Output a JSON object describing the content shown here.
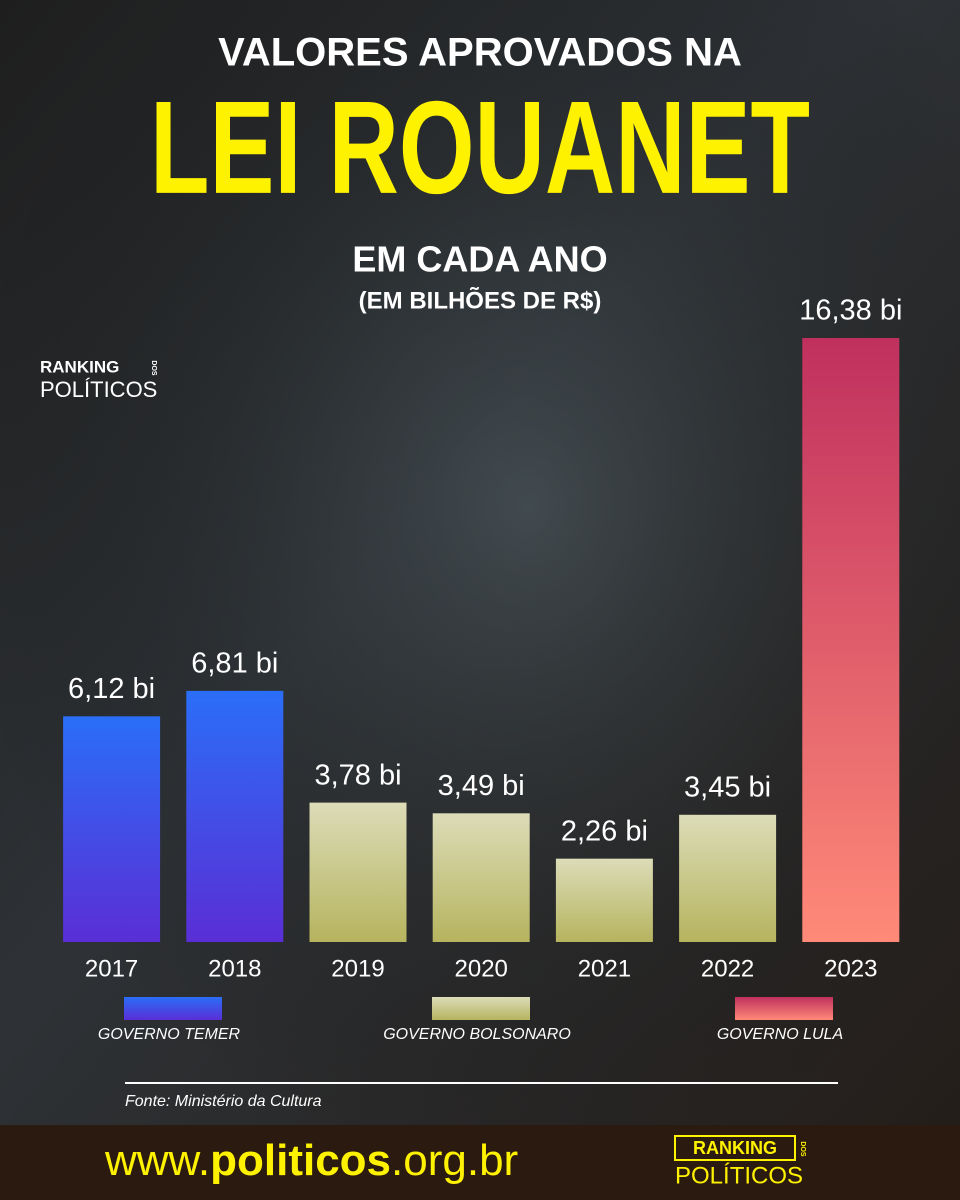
{
  "header": {
    "title_line1": "VALORES APROVADOS NA",
    "title_main": "LEI ROUANET",
    "subtitle": "EM CADA ANO",
    "unit_note": "(EM BILHÕES DE R$)"
  },
  "logo": {
    "ranking": "RANKING",
    "dos": "DOS",
    "politicos": "POLÍTICOS"
  },
  "chart_data": {
    "type": "bar",
    "categories": [
      "2017",
      "2018",
      "2019",
      "2020",
      "2021",
      "2022",
      "2023"
    ],
    "series": [
      {
        "name": "GOVERNO TEMER",
        "color": [
          "#2a6ef7",
          "#5a2ed6"
        ],
        "values": [
          6.12,
          6.81,
          null,
          null,
          null,
          null,
          null
        ],
        "value_labels": [
          "6,12 bi",
          "6,81 bi",
          null,
          null,
          null,
          null,
          null
        ]
      },
      {
        "name": "GOVERNO BOLSONARO",
        "color": [
          "#dcdcb8",
          "#b6b45e"
        ],
        "values": [
          null,
          null,
          3.78,
          3.49,
          2.26,
          3.45,
          null
        ],
        "value_labels": [
          null,
          null,
          "3,78 bi",
          "3,49 bi",
          "2,26 bi",
          "3,45 bi",
          null
        ]
      },
      {
        "name": "GOVERNO LULA",
        "color": [
          "#c0305e",
          "#ff8a78"
        ],
        "values": [
          null,
          null,
          null,
          null,
          null,
          null,
          16.38
        ],
        "value_labels": [
          null,
          null,
          null,
          null,
          null,
          null,
          "16,38 bi"
        ]
      }
    ]
  },
  "source": "Fonte: Ministério da Cultura",
  "footer": {
    "url_parts": [
      "www.",
      "politicos",
      ".org.br"
    ]
  }
}
